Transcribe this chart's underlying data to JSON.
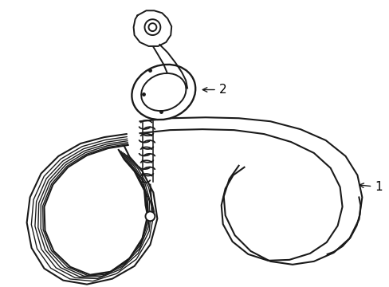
{
  "background_color": "#ffffff",
  "line_color": "#1a1a1a",
  "line_width": 1.4,
  "label_color": "#000000",
  "label_fontsize": 11,
  "label_1": "1",
  "label_2": "2",
  "figsize": [
    4.89,
    3.6
  ],
  "dpi": 100,
  "belt_lw": 1.5,
  "rib_lw": 1.0
}
